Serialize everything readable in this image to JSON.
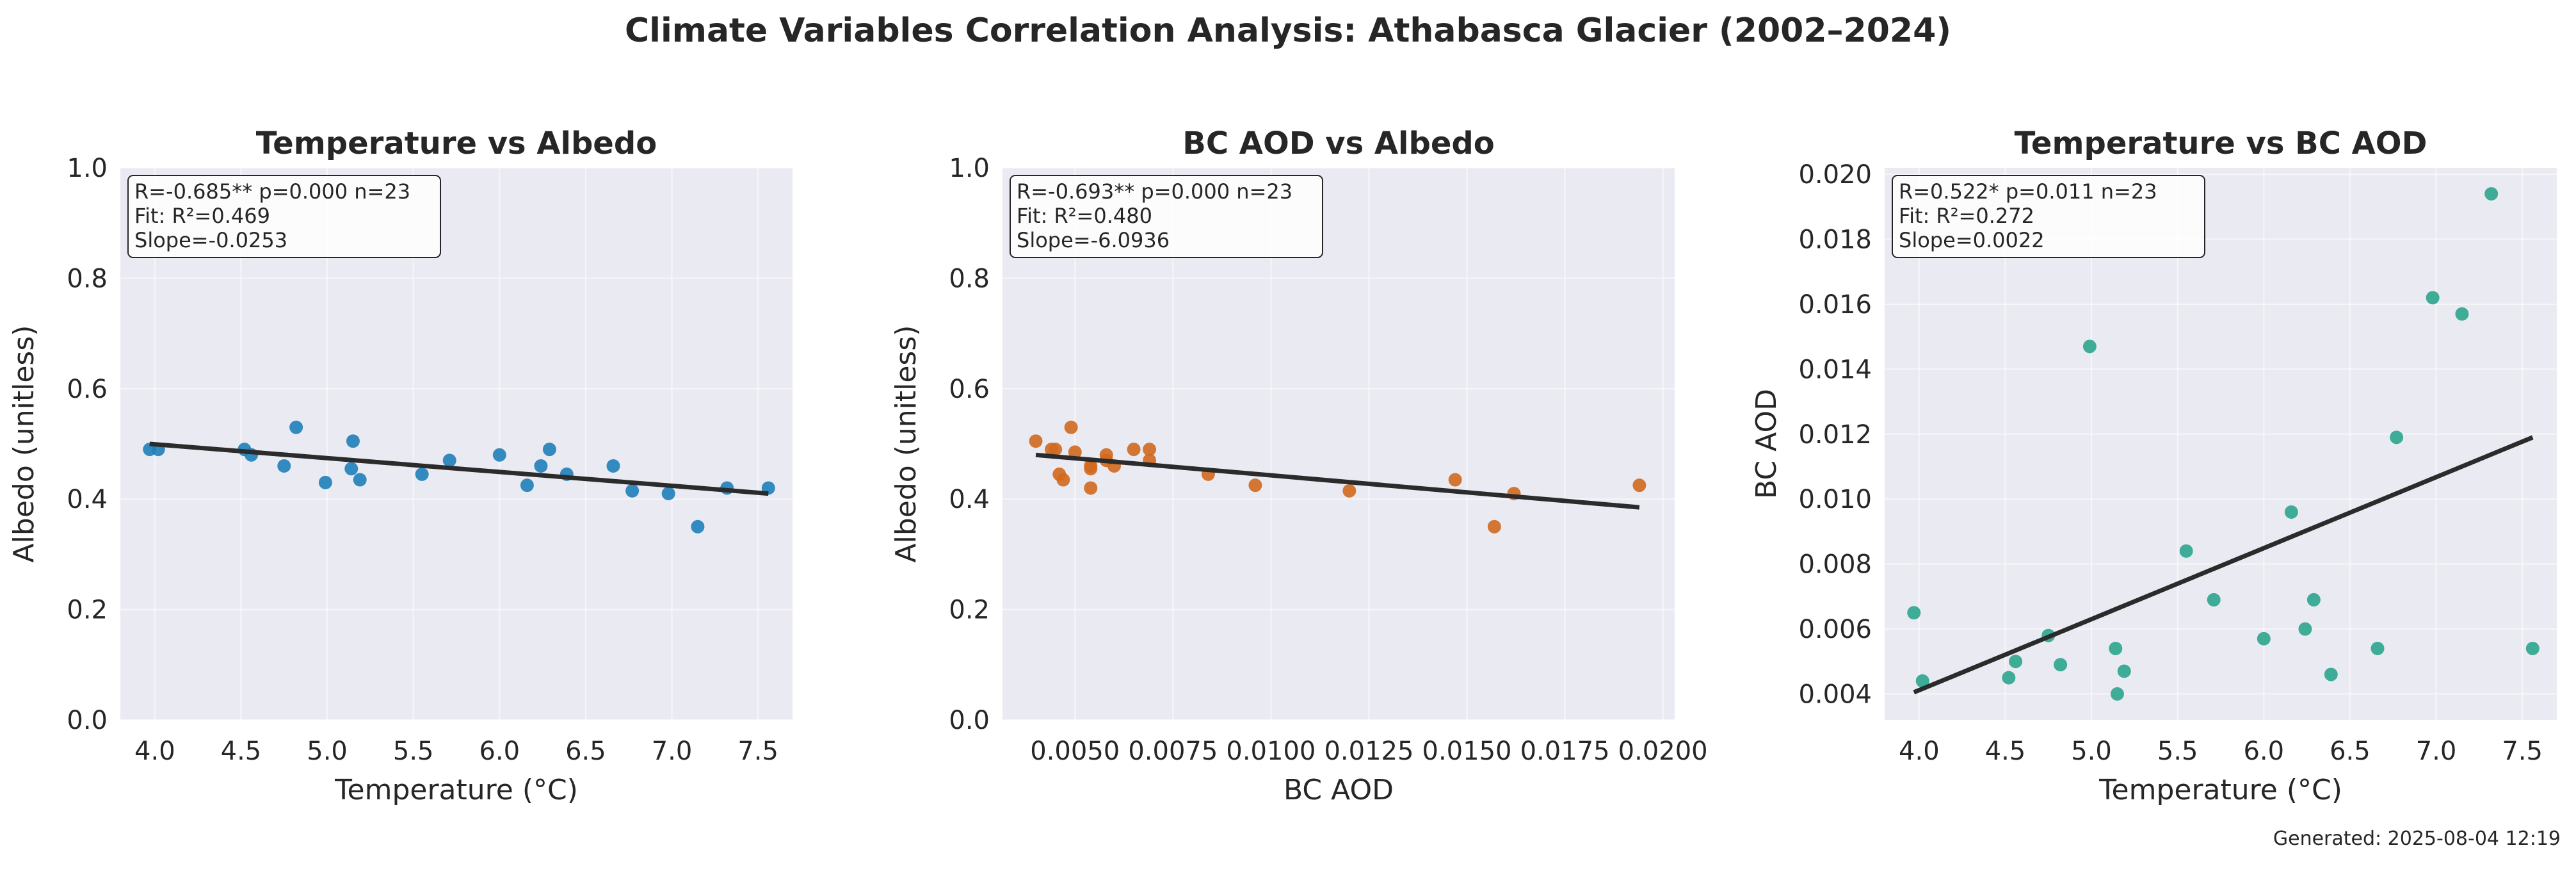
{
  "figure": {
    "title": "Climate Variables Correlation Analysis: Athabasca Glacier (2002–2024)",
    "footer": "Generated: 2025-08-04 12:19"
  },
  "chart_data": [
    {
      "type": "scatter",
      "title": "Temperature vs Albedo",
      "xlabel": "Temperature (°C)",
      "ylabel": "Albedo (unitless)",
      "xlim": [
        3.8,
        7.7
      ],
      "ylim": [
        0.0,
        1.0
      ],
      "xticks": [
        "4.0",
        "4.5",
        "5.0",
        "5.5",
        "6.0",
        "6.5",
        "7.0",
        "7.5"
      ],
      "xtick_values": [
        4.0,
        4.5,
        5.0,
        5.5,
        6.0,
        6.5,
        7.0,
        7.5
      ],
      "yticks": [
        "0.0",
        "0.2",
        "0.4",
        "0.6",
        "0.8",
        "1.0"
      ],
      "ytick_values": [
        0.0,
        0.2,
        0.4,
        0.6,
        0.8,
        1.0
      ],
      "color": "#1f7fb9",
      "grid": true,
      "points": [
        [
          3.97,
          0.49
        ],
        [
          4.02,
          0.49
        ],
        [
          4.52,
          0.49
        ],
        [
          4.56,
          0.48
        ],
        [
          4.75,
          0.46
        ],
        [
          4.82,
          0.53
        ],
        [
          4.99,
          0.43
        ],
        [
          5.14,
          0.455
        ],
        [
          5.15,
          0.505
        ],
        [
          5.19,
          0.435
        ],
        [
          5.55,
          0.445
        ],
        [
          5.71,
          0.47
        ],
        [
          6.0,
          0.48
        ],
        [
          6.16,
          0.425
        ],
        [
          6.24,
          0.46
        ],
        [
          6.29,
          0.49
        ],
        [
          6.39,
          0.445
        ],
        [
          6.66,
          0.46
        ],
        [
          6.77,
          0.415
        ],
        [
          6.98,
          0.41
        ],
        [
          7.15,
          0.35
        ],
        [
          7.32,
          0.42
        ],
        [
          7.56,
          0.42
        ]
      ],
      "fit_line": [
        [
          3.97,
          0.5
        ],
        [
          7.56,
          0.41
        ]
      ],
      "annotation": [
        "R=-0.685**  p=0.000  n=23",
        "Fit: R²=0.469",
        "Slope=-0.0253"
      ]
    },
    {
      "type": "scatter",
      "title": "BC AOD vs Albedo",
      "xlabel": "BC AOD",
      "ylabel": "Albedo (unitless)",
      "xlim": [
        0.00315,
        0.0203
      ],
      "ylim": [
        0.0,
        1.0
      ],
      "xticks": [
        "0.0050",
        "0.0075",
        "0.0100",
        "0.0125",
        "0.0150",
        "0.0175",
        "0.0200"
      ],
      "xtick_values": [
        0.005,
        0.0075,
        0.01,
        0.0125,
        0.015,
        0.0175,
        0.02
      ],
      "yticks": [
        "0.0",
        "0.2",
        "0.4",
        "0.6",
        "0.8",
        "1.0"
      ],
      "ytick_values": [
        0.0,
        0.2,
        0.4,
        0.6,
        0.8,
        1.0
      ],
      "color": "#d2691e",
      "grid": true,
      "points": [
        [
          0.004,
          0.505
        ],
        [
          0.0044,
          0.49
        ],
        [
          0.0045,
          0.49
        ],
        [
          0.0046,
          0.445
        ],
        [
          0.0047,
          0.435
        ],
        [
          0.0049,
          0.53
        ],
        [
          0.005,
          0.485
        ],
        [
          0.0054,
          0.455
        ],
        [
          0.0054,
          0.46
        ],
        [
          0.0054,
          0.42
        ],
        [
          0.0058,
          0.48
        ],
        [
          0.0058,
          0.47
        ],
        [
          0.006,
          0.46
        ],
        [
          0.0065,
          0.49
        ],
        [
          0.0069,
          0.47
        ],
        [
          0.0069,
          0.49
        ],
        [
          0.0084,
          0.445
        ],
        [
          0.0096,
          0.425
        ],
        [
          0.012,
          0.415
        ],
        [
          0.0147,
          0.435
        ],
        [
          0.0157,
          0.35
        ],
        [
          0.0162,
          0.41
        ],
        [
          0.0194,
          0.425
        ]
      ],
      "fit_line": [
        [
          0.004,
          0.48
        ],
        [
          0.0194,
          0.385
        ]
      ],
      "annotation": [
        "R=-0.693**  p=0.000  n=23",
        "Fit: R²=0.480",
        "Slope=-6.0936"
      ]
    },
    {
      "type": "scatter",
      "title": "Temperature vs BC AOD",
      "xlabel": "Temperature (°C)",
      "ylabel": "BC AOD",
      "xlim": [
        3.8,
        7.7
      ],
      "ylim": [
        0.0032,
        0.0202
      ],
      "xticks": [
        "4.0",
        "4.5",
        "5.0",
        "5.5",
        "6.0",
        "6.5",
        "7.0",
        "7.5"
      ],
      "xtick_values": [
        4.0,
        4.5,
        5.0,
        5.5,
        6.0,
        6.5,
        7.0,
        7.5
      ],
      "yticks": [
        "0.004",
        "0.006",
        "0.008",
        "0.010",
        "0.012",
        "0.014",
        "0.016",
        "0.018",
        "0.020"
      ],
      "ytick_values": [
        0.004,
        0.006,
        0.008,
        0.01,
        0.012,
        0.014,
        0.016,
        0.018,
        0.02
      ],
      "color": "#2ca58d",
      "grid": true,
      "points": [
        [
          3.97,
          0.0065
        ],
        [
          4.02,
          0.0044
        ],
        [
          4.52,
          0.0045
        ],
        [
          4.56,
          0.005
        ],
        [
          4.75,
          0.0058
        ],
        [
          4.82,
          0.0049
        ],
        [
          4.99,
          0.0147
        ],
        [
          5.14,
          0.0054
        ],
        [
          5.15,
          0.004
        ],
        [
          5.19,
          0.0047
        ],
        [
          5.55,
          0.0084
        ],
        [
          5.71,
          0.0069
        ],
        [
          6.0,
          0.0057
        ],
        [
          6.16,
          0.0096
        ],
        [
          6.24,
          0.006
        ],
        [
          6.29,
          0.0069
        ],
        [
          6.39,
          0.0046
        ],
        [
          6.66,
          0.0054
        ],
        [
          6.77,
          0.0119
        ],
        [
          6.98,
          0.0162
        ],
        [
          7.15,
          0.0157
        ],
        [
          7.32,
          0.0194
        ],
        [
          7.56,
          0.0054
        ]
      ],
      "fit_line": [
        [
          3.97,
          0.00405
        ],
        [
          7.56,
          0.0119
        ]
      ],
      "annotation": [
        "R=0.522*  p=0.011  n=23",
        "Fit: R²=0.272",
        "Slope=0.0022"
      ]
    }
  ]
}
